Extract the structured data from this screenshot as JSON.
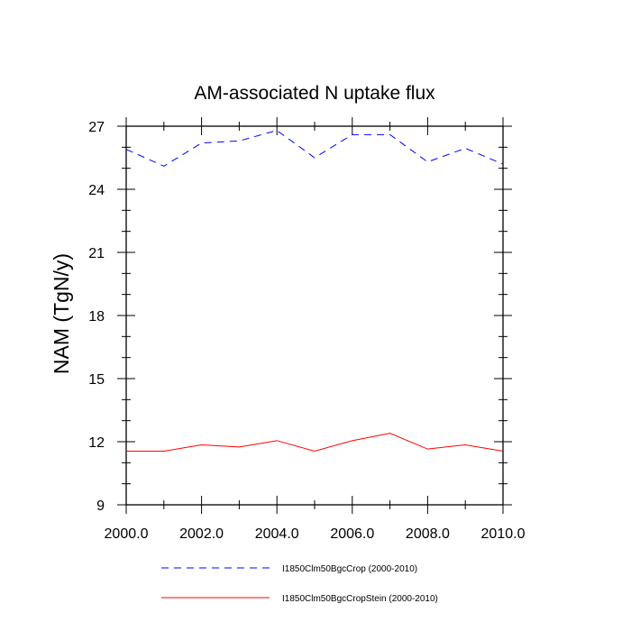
{
  "chart_data": {
    "type": "line",
    "title": "AM-associated N uptake flux",
    "xlabel": "",
    "ylabel": "NAM  (TgN/y)",
    "x": [
      2000,
      2001,
      2002,
      2003,
      2004,
      2005,
      2006,
      2007,
      2008,
      2009,
      2010
    ],
    "xlim": [
      2000,
      2010
    ],
    "ylim": [
      9,
      27
    ],
    "xticks": [
      2000,
      2002,
      2004,
      2006,
      2008,
      2010
    ],
    "xtick_labels": [
      "2000.0",
      "2002.0",
      "2004.0",
      "2006.0",
      "2008.0",
      "2010.0"
    ],
    "yticks": [
      9,
      12,
      15,
      18,
      21,
      24,
      27
    ],
    "ytick_labels": [
      "9",
      "12",
      "15",
      "18",
      "21",
      "24",
      "27"
    ],
    "grid": false,
    "legend_position": "bottom",
    "series": [
      {
        "name": "I1850Clm50BgcCrop (2000-2010)",
        "color": "#0000ff",
        "line_style": "dashed",
        "values": [
          25.9,
          25.1,
          26.2,
          26.3,
          26.8,
          25.5,
          26.6,
          26.6,
          25.3,
          25.95,
          25.2
        ]
      },
      {
        "name": "I1850Clm50BgcCropStein (2000-2010)",
        "color": "#ff0000",
        "line_style": "solid",
        "values": [
          11.55,
          11.55,
          11.85,
          11.75,
          12.05,
          11.55,
          12.05,
          12.4,
          11.65,
          11.85,
          11.55
        ]
      }
    ]
  }
}
